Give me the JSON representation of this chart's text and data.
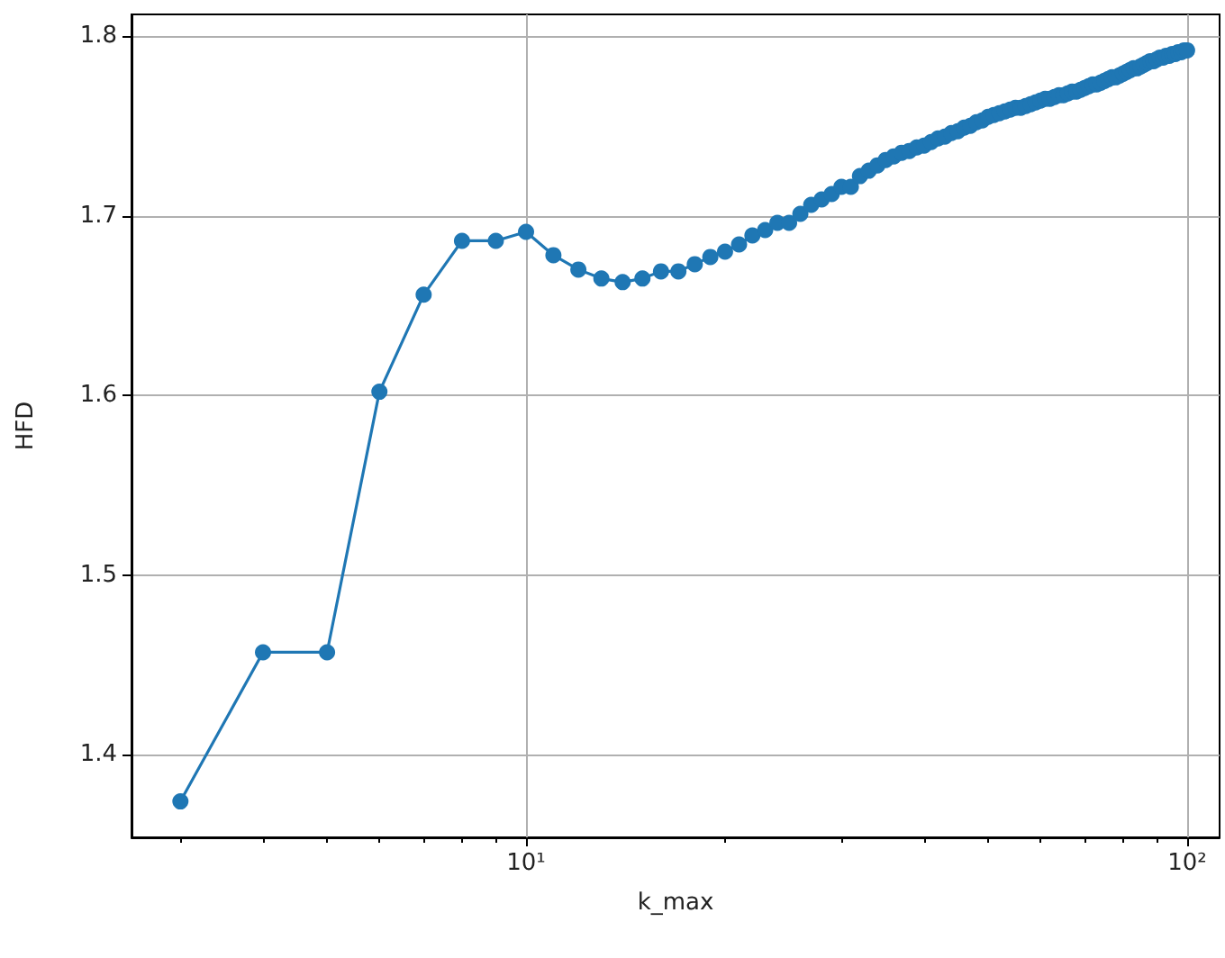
{
  "chart_data": {
    "type": "line",
    "xlabel": "k_max",
    "ylabel": "HFD",
    "log": "x",
    "grid": true,
    "marker": "circle",
    "line_style": "solid",
    "xlim": [
      2.53,
      112
    ],
    "ylim": [
      1.354,
      1.812
    ],
    "xticks": [
      {
        "value": 3,
        "label": null
      },
      {
        "value": 4,
        "label": null
      },
      {
        "value": 5,
        "label": null
      },
      {
        "value": 6,
        "label": null
      },
      {
        "value": 7,
        "label": null
      },
      {
        "value": 8,
        "label": null
      },
      {
        "value": 9,
        "label": null
      },
      {
        "value": 10,
        "label": "10¹"
      },
      {
        "value": 20,
        "label": null
      },
      {
        "value": 30,
        "label": null
      },
      {
        "value": 40,
        "label": null
      },
      {
        "value": 50,
        "label": null
      },
      {
        "value": 60,
        "label": null
      },
      {
        "value": 70,
        "label": null
      },
      {
        "value": 80,
        "label": null
      },
      {
        "value": 90,
        "label": null
      },
      {
        "value": 100,
        "label": "10²"
      }
    ],
    "yticks": [
      1.4,
      1.5,
      1.6,
      1.7,
      1.8
    ],
    "series": [
      {
        "color": "#1f77b4",
        "x": [
          3,
          4,
          5,
          6,
          7,
          8,
          9,
          10,
          11,
          12,
          13,
          14,
          15,
          16,
          17,
          18,
          19,
          20,
          21,
          22,
          23,
          24,
          25,
          26,
          27,
          28,
          29,
          30,
          31,
          32,
          33,
          34,
          35,
          36,
          37,
          38,
          39,
          40,
          41,
          42,
          43,
          44,
          45,
          46,
          47,
          48,
          49,
          50,
          51,
          52,
          53,
          54,
          55,
          56,
          57,
          58,
          59,
          60,
          61,
          62,
          63,
          64,
          65,
          66,
          67,
          68,
          69,
          70,
          71,
          72,
          73,
          74,
          75,
          76,
          77,
          78,
          79,
          80,
          81,
          82,
          83,
          84,
          85,
          86,
          87,
          88,
          89,
          90,
          91,
          92,
          93,
          94,
          95,
          96,
          97,
          98,
          99,
          100
        ],
        "values": [
          1.374,
          1.457,
          1.457,
          1.602,
          1.656,
          1.686,
          1.686,
          1.691,
          1.678,
          1.67,
          1.665,
          1.663,
          1.665,
          1.669,
          1.669,
          1.673,
          1.677,
          1.68,
          1.684,
          1.689,
          1.692,
          1.696,
          1.696,
          1.701,
          1.706,
          1.709,
          1.712,
          1.716,
          1.716,
          1.722,
          1.725,
          1.728,
          1.731,
          1.733,
          1.735,
          1.736,
          1.738,
          1.739,
          1.741,
          1.743,
          1.744,
          1.746,
          1.747,
          1.749,
          1.75,
          1.752,
          1.753,
          1.755,
          1.756,
          1.757,
          1.758,
          1.759,
          1.76,
          1.76,
          1.761,
          1.762,
          1.763,
          1.764,
          1.765,
          1.765,
          1.766,
          1.767,
          1.767,
          1.768,
          1.769,
          1.769,
          1.77,
          1.771,
          1.772,
          1.773,
          1.773,
          1.774,
          1.775,
          1.776,
          1.777,
          1.777,
          1.778,
          1.779,
          1.78,
          1.781,
          1.782,
          1.782,
          1.783,
          1.784,
          1.785,
          1.786,
          1.786,
          1.787,
          1.788,
          1.788,
          1.789,
          1.789,
          1.79,
          1.79,
          1.791,
          1.791,
          1.792,
          1.792
        ]
      }
    ]
  }
}
